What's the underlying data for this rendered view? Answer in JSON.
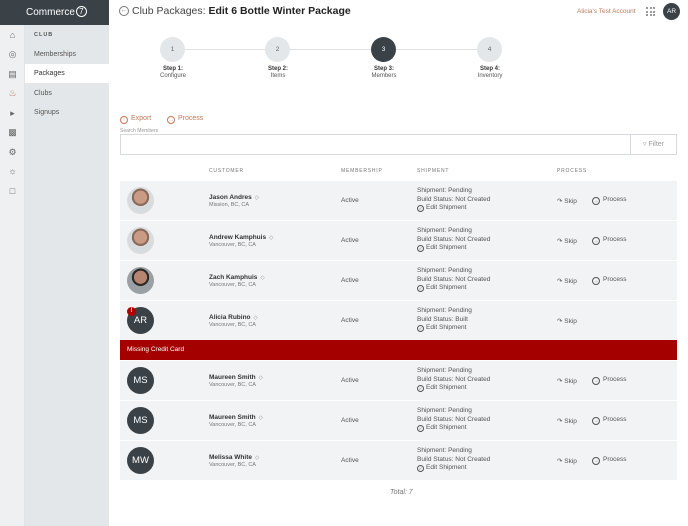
{
  "app": {
    "brand": "Commerce",
    "brand_mark": "7"
  },
  "header": {
    "title_prefix": "Club Packages:",
    "title": "Edit 6 Bottle Winter Package",
    "account": "Alicia's Test Account",
    "avatar": "AR"
  },
  "rail": {
    "icons": [
      "home-icon",
      "globe-icon",
      "store-icon",
      "club-icon",
      "megaphone-icon",
      "chart-icon",
      "settings-icon",
      "gear-icon",
      "file-icon"
    ]
  },
  "subnav": {
    "heading": "CLUB",
    "items": [
      {
        "label": "Memberships"
      },
      {
        "label": "Packages"
      },
      {
        "label": "Clubs"
      },
      {
        "label": "Signups"
      }
    ]
  },
  "steps": [
    {
      "number": "1",
      "title": "Step 1:",
      "label": "Configure"
    },
    {
      "number": "2",
      "title": "Step 2:",
      "label": "Items"
    },
    {
      "number": "3",
      "title": "Step 3:",
      "label": "Members"
    },
    {
      "number": "4",
      "title": "Step 4:",
      "label": "Inventory"
    }
  ],
  "toolbar": {
    "export": "Export",
    "process": "Process"
  },
  "search": {
    "label": "Search Members",
    "value": "",
    "filter": "Filter"
  },
  "table": {
    "headers": {
      "customer": "Customer",
      "membership": "Membership",
      "shipment": "Shipment",
      "process": "Process"
    },
    "rows": [
      {
        "name": "Jason Andres",
        "location": "Mission, BC, CA",
        "membership": "Active",
        "shipment": "Shipment: Pending",
        "build": "Build Status: Not Created",
        "edit": "Edit Shipment",
        "skip": "Skip",
        "process": "Process"
      },
      {
        "name": "Andrew Kamphuis",
        "location": "Vancouver, BC, CA",
        "membership": "Active",
        "shipment": "Shipment: Pending",
        "build": "Build Status: Not Created",
        "edit": "Edit Shipment",
        "skip": "Skip",
        "process": "Process"
      },
      {
        "name": "Zach Kamphuis",
        "location": "Vancouver, BC, CA",
        "membership": "Active",
        "shipment": "Shipment: Pending",
        "build": "Build Status: Not Created",
        "edit": "Edit Shipment",
        "skip": "Skip",
        "process": "Process"
      },
      {
        "name": "Alicia Rubino",
        "location": "Vancouver, BC, CA",
        "initials": "AR",
        "warning": "!",
        "membership": "Active",
        "shipment": "Shipment: Pending",
        "build": "Build Status: Built",
        "edit": "Edit Shipment",
        "skip": "Skip"
      },
      {
        "name": "Maureen Smith",
        "location": "Vancouver, BC, CA",
        "initials": "MS",
        "membership": "Active",
        "shipment": "Shipment: Pending",
        "build": "Build Status: Not Created",
        "edit": "Edit Shipment",
        "skip": "Skip",
        "process": "Process"
      },
      {
        "name": "Maureen Smith",
        "location": "Vancouver, BC, CA",
        "initials": "MS",
        "membership": "Active",
        "shipment": "Shipment: Pending",
        "build": "Build Status: Not Created",
        "edit": "Edit Shipment",
        "skip": "Skip",
        "process": "Process"
      },
      {
        "name": "Melissa White",
        "location": "Vancouver, BC, CA",
        "initials": "MW",
        "membership": "Active",
        "shipment": "Shipment: Pending",
        "build": "Build Status: Not Created",
        "edit": "Edit Shipment",
        "skip": "Skip",
        "process": "Process"
      }
    ],
    "alert": "Missing Credit Card",
    "total": "Total: 7"
  },
  "colors": {
    "accent": "#c07a58",
    "dark": "#3b4247",
    "alert": "#a40000"
  }
}
